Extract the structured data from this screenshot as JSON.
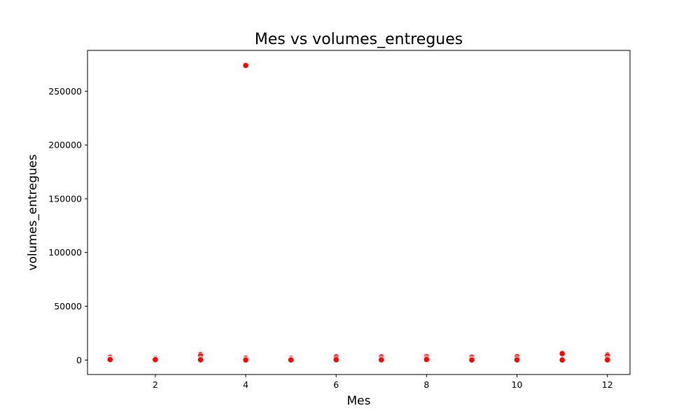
{
  "chart_data": {
    "type": "scatter",
    "title": "Mes vs volumes_entregues",
    "xlabel": "Mes",
    "ylabel": "volumes_entregues",
    "xlim": [
      0.5,
      12.5
    ],
    "ylim": [
      -13500,
      288000
    ],
    "xticks": [
      2,
      4,
      6,
      8,
      10,
      12
    ],
    "yticks": [
      0,
      50000,
      100000,
      150000,
      200000,
      250000
    ],
    "grid": false,
    "legend": "none",
    "point_color": "#ff0000",
    "points": [
      {
        "x": 1,
        "y": 2500
      },
      {
        "x": 1,
        "y": 1200
      },
      {
        "x": 1,
        "y": 400
      },
      {
        "x": 2,
        "y": 1800
      },
      {
        "x": 2,
        "y": 900
      },
      {
        "x": 2,
        "y": 300
      },
      {
        "x": 3,
        "y": 5000
      },
      {
        "x": 3,
        "y": 3800
      },
      {
        "x": 3,
        "y": 1200
      },
      {
        "x": 3,
        "y": 100
      },
      {
        "x": 4,
        "y": 274000
      },
      {
        "x": 4,
        "y": 1800
      },
      {
        "x": 4,
        "y": 600
      },
      {
        "x": 4,
        "y": 50
      },
      {
        "x": 5,
        "y": 1600
      },
      {
        "x": 5,
        "y": 700
      },
      {
        "x": 5,
        "y": 80
      },
      {
        "x": 6,
        "y": 3000
      },
      {
        "x": 6,
        "y": 1500
      },
      {
        "x": 6,
        "y": 200
      },
      {
        "x": 7,
        "y": 2800
      },
      {
        "x": 7,
        "y": 1200
      },
      {
        "x": 7,
        "y": 100
      },
      {
        "x": 8,
        "y": 3200
      },
      {
        "x": 8,
        "y": 1700
      },
      {
        "x": 8,
        "y": 500
      },
      {
        "x": 9,
        "y": 2600
      },
      {
        "x": 9,
        "y": 900
      },
      {
        "x": 9,
        "y": 40
      },
      {
        "x": 10,
        "y": 3100
      },
      {
        "x": 10,
        "y": 1400
      },
      {
        "x": 10,
        "y": 100
      },
      {
        "x": 11,
        "y": 6500
      },
      {
        "x": 11,
        "y": 5900
      },
      {
        "x": 11,
        "y": 600
      },
      {
        "x": 11,
        "y": 50
      },
      {
        "x": 12,
        "y": 4800
      },
      {
        "x": 12,
        "y": 3700
      },
      {
        "x": 12,
        "y": 1300
      },
      {
        "x": 12,
        "y": 100
      }
    ]
  }
}
